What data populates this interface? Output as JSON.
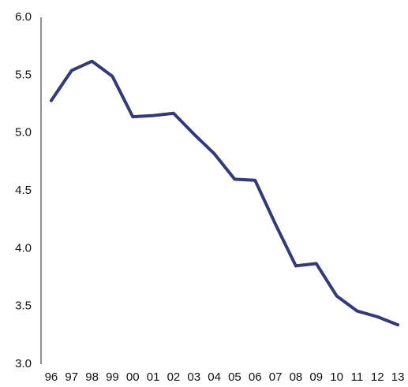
{
  "chart_data": {
    "type": "line",
    "categories": [
      "96",
      "97",
      "98",
      "99",
      "00",
      "01",
      "02",
      "03",
      "04",
      "05",
      "06",
      "07",
      "08",
      "09",
      "10",
      "11",
      "12",
      "13"
    ],
    "values": [
      5.28,
      5.54,
      5.62,
      5.49,
      5.14,
      5.15,
      5.17,
      4.99,
      4.82,
      4.6,
      4.59,
      4.21,
      3.85,
      3.87,
      3.59,
      3.46,
      3.41,
      3.34
    ],
    "color": "#333a78",
    "ylim": [
      3,
      6
    ],
    "yticks": [
      {
        "value": 3,
        "label": "3.0"
      },
      3.5,
      {
        "value": 4,
        "label": "4.0"
      },
      4.5,
      {
        "value": 5,
        "label": "5.0"
      },
      5.5,
      {
        "value": 6,
        "label": "6.0"
      }
    ],
    "grid": false
  }
}
